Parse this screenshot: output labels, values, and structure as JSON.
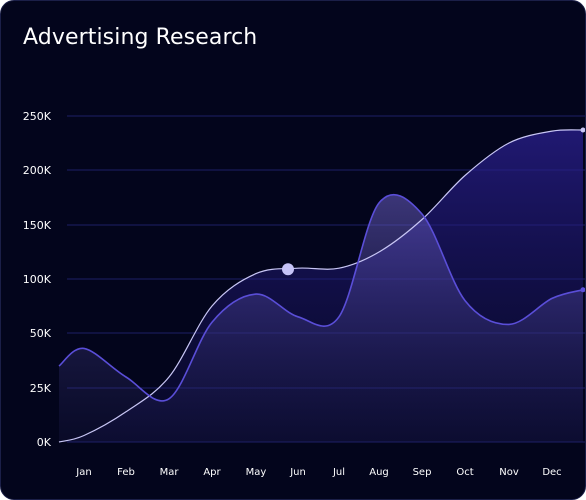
{
  "chart_data": {
    "type": "line",
    "title": "Advertising Research",
    "xlabel": "",
    "ylabel": "",
    "categories": [
      "Jan",
      "Feb",
      "Mar",
      "Apr",
      "May",
      "Jun",
      "Jul",
      "Aug",
      "Sep",
      "Oct",
      "Nov",
      "Dec"
    ],
    "yticks": [
      "0K",
      "25K",
      "50K",
      "100K",
      "150K",
      "200K",
      "250K"
    ],
    "ylim": [
      0,
      250
    ],
    "y_scale": "categorical-ticks",
    "grid": true,
    "legend": "none",
    "series": [
      {
        "values": [
          43,
          30,
          20,
          60,
          86,
          65,
          65,
          170,
          160,
          80,
          58,
          82
        ],
        "end_value": 90,
        "start_value": 35,
        "fill": true,
        "color": "#5a4ed8"
      },
      {
        "values": [
          3,
          14,
          30,
          75,
          105,
          110,
          110,
          125,
          155,
          195,
          225,
          236
        ],
        "end_value": 237,
        "start_value": 0,
        "fill": true,
        "color": "#c8c6f5",
        "highlight_index": 5
      }
    ]
  }
}
